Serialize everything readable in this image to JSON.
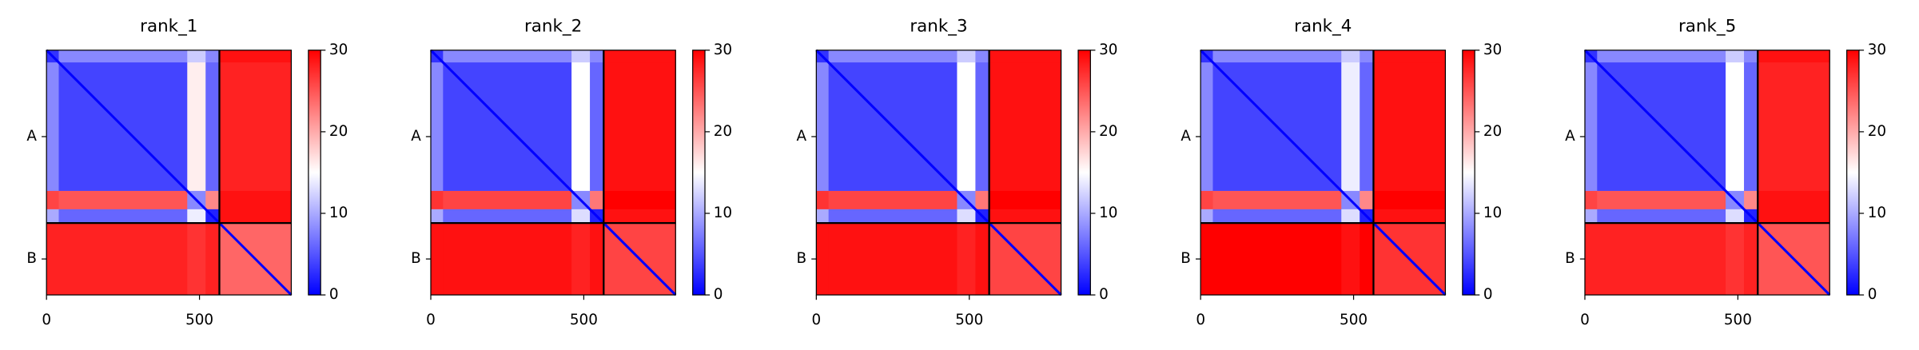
{
  "chart_data": [
    {
      "type": "heatmap",
      "title": "rank_1",
      "xlim": [
        0,
        800
      ],
      "ylim": [
        0,
        800
      ],
      "xticks": [
        0,
        500
      ],
      "chain_labels": [
        "A",
        "B"
      ],
      "chain_boundary": 565,
      "cell_edges": [
        0,
        40,
        460,
        520,
        565,
        800
      ],
      "values": [
        [
          3,
          8,
          12,
          8,
          29
        ],
        [
          8,
          4,
          16,
          6,
          28
        ],
        [
          26,
          25,
          8,
          22,
          29
        ],
        [
          10,
          6,
          14,
          2,
          29
        ],
        [
          28,
          28,
          27,
          28,
          24
        ]
      ],
      "diagonal": 0,
      "clim": [
        0,
        30
      ],
      "cticks": [
        0,
        10,
        20,
        30
      ],
      "cmap": [
        "#0000ff",
        "#ffffff",
        "#ff0000"
      ]
    },
    {
      "type": "heatmap",
      "title": "rank_2",
      "xlim": [
        0,
        800
      ],
      "ylim": [
        0,
        800
      ],
      "xticks": [
        0,
        500
      ],
      "chain_labels": [
        "A",
        "B"
      ],
      "chain_boundary": 565,
      "cell_edges": [
        0,
        40,
        460,
        520,
        565,
        800
      ],
      "values": [
        [
          3,
          8,
          12,
          8,
          29
        ],
        [
          8,
          4,
          15,
          6,
          29
        ],
        [
          27,
          26,
          8,
          23,
          30
        ],
        [
          10,
          6,
          13,
          2,
          29
        ],
        [
          29,
          29,
          28,
          29,
          26
        ]
      ],
      "diagonal": 0,
      "clim": [
        0,
        30
      ],
      "cticks": [
        0,
        10,
        20,
        30
      ],
      "cmap": [
        "#0000ff",
        "#ffffff",
        "#ff0000"
      ]
    },
    {
      "type": "heatmap",
      "title": "rank_3",
      "xlim": [
        0,
        800
      ],
      "ylim": [
        0,
        800
      ],
      "xticks": [
        0,
        500
      ],
      "chain_labels": [
        "A",
        "B"
      ],
      "chain_boundary": 565,
      "cell_edges": [
        0,
        40,
        460,
        520,
        565,
        800
      ],
      "values": [
        [
          3,
          8,
          12,
          8,
          29
        ],
        [
          8,
          4,
          15,
          6,
          29
        ],
        [
          27,
          26,
          8,
          23,
          30
        ],
        [
          10,
          6,
          13,
          2,
          29
        ],
        [
          29,
          29,
          28,
          29,
          26
        ]
      ],
      "diagonal": 0,
      "clim": [
        0,
        30
      ],
      "cticks": [
        0,
        10,
        20,
        30
      ],
      "cmap": [
        "#0000ff",
        "#ffffff",
        "#ff0000"
      ]
    },
    {
      "type": "heatmap",
      "title": "rank_4",
      "xlim": [
        0,
        800
      ],
      "ylim": [
        0,
        800
      ],
      "xticks": [
        0,
        500
      ],
      "chain_labels": [
        "A",
        "B"
      ],
      "chain_boundary": 565,
      "cell_edges": [
        0,
        40,
        460,
        520,
        565,
        800
      ],
      "values": [
        [
          3,
          8,
          12,
          8,
          29
        ],
        [
          8,
          4,
          14,
          6,
          29
        ],
        [
          26,
          25,
          8,
          22,
          30
        ],
        [
          10,
          6,
          13,
          2,
          29
        ],
        [
          30,
          30,
          29,
          30,
          27
        ]
      ],
      "diagonal": 0,
      "clim": [
        0,
        30
      ],
      "cticks": [
        0,
        10,
        20,
        30
      ],
      "cmap": [
        "#0000ff",
        "#ffffff",
        "#ff0000"
      ]
    },
    {
      "type": "heatmap",
      "title": "rank_5",
      "xlim": [
        0,
        800
      ],
      "ylim": [
        0,
        800
      ],
      "xticks": [
        0,
        500
      ],
      "chain_labels": [
        "A",
        "B"
      ],
      "chain_boundary": 565,
      "cell_edges": [
        0,
        40,
        460,
        520,
        565,
        800
      ],
      "values": [
        [
          3,
          8,
          12,
          8,
          29
        ],
        [
          8,
          4,
          15,
          6,
          28
        ],
        [
          26,
          25,
          8,
          22,
          29
        ],
        [
          10,
          6,
          13,
          2,
          29
        ],
        [
          28,
          28,
          27,
          28,
          25
        ]
      ],
      "diagonal": 0,
      "clim": [
        0,
        30
      ],
      "cticks": [
        0,
        10,
        20,
        30
      ],
      "cmap": [
        "#0000ff",
        "#ffffff",
        "#ff0000"
      ]
    }
  ]
}
